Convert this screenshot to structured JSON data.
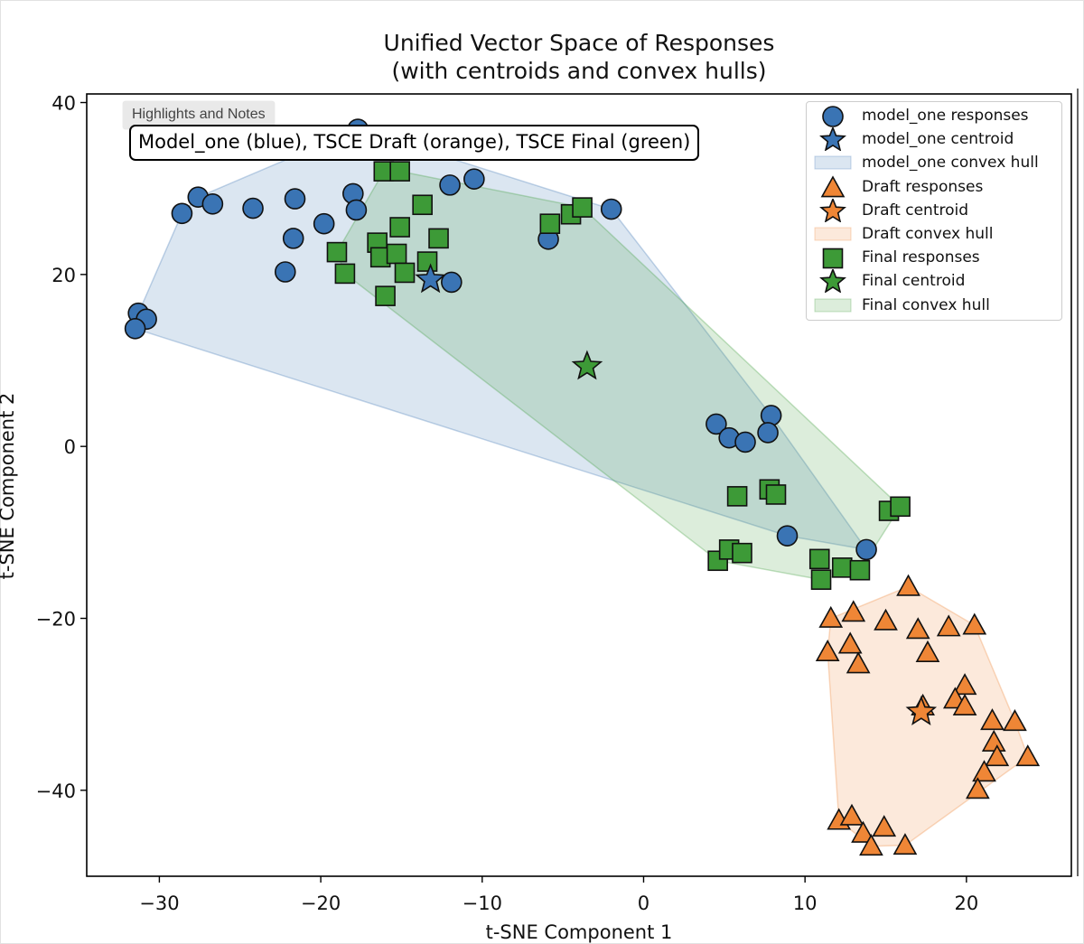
{
  "chart_data": {
    "type": "scatter",
    "title": "Unified Vector Space of Responses\n(with centroids and convex hulls)",
    "xlabel": "t-SNE Component 1",
    "ylabel": "t-SNE Component 2",
    "xlim": [
      -34.5,
      26.5
    ],
    "ylim": [
      -50,
      41
    ],
    "xticks": [
      -30,
      -20,
      -10,
      0,
      10,
      20
    ],
    "yticks": [
      -40,
      -20,
      0,
      20,
      40
    ],
    "annotation": "Model_one (blue), TSCE Draft (orange), TSCE Final (green)",
    "chip_label": "Highlights and Notes",
    "series": [
      {
        "name": "model_one responses",
        "marker": "circle",
        "color": "#3a74b4",
        "centroid": {
          "name": "model_one centroid",
          "x": -13.2,
          "y": 19.4
        },
        "hull_name": "model_one convex hull",
        "points": [
          [
            -17.7,
            36.9
          ],
          [
            -27.6,
            29
          ],
          [
            -28.6,
            27.1
          ],
          [
            -26.7,
            28.2
          ],
          [
            -24.2,
            27.7
          ],
          [
            -21.6,
            28.8
          ],
          [
            -21.7,
            24.2
          ],
          [
            -19.8,
            25.9
          ],
          [
            -22.2,
            20.3
          ],
          [
            -18,
            29.4
          ],
          [
            -17.8,
            27.5
          ],
          [
            -12.0,
            30.4
          ],
          [
            -10.5,
            31.1
          ],
          [
            -11.9,
            19.1
          ],
          [
            -2.0,
            27.6
          ],
          [
            -5.9,
            24.1
          ],
          [
            -31.3,
            15.5
          ],
          [
            -30.8,
            14.8
          ],
          [
            -31.5,
            13.7
          ],
          [
            4.5,
            2.6
          ],
          [
            5.3,
            1.0
          ],
          [
            6.3,
            0.5
          ],
          [
            7.9,
            3.6
          ],
          [
            7.7,
            1.6
          ],
          [
            8.9,
            -10.4
          ],
          [
            13.8,
            -12
          ]
        ]
      },
      {
        "name": "Draft responses",
        "marker": "triangle",
        "color": "#ef8636",
        "centroid": {
          "name": "Draft centroid",
          "x": 17.2,
          "y": -30.9
        },
        "hull_name": "Draft convex hull",
        "points": [
          [
            16.4,
            -16.3
          ],
          [
            11.6,
            -20
          ],
          [
            13,
            -19.3
          ],
          [
            15,
            -20.3
          ],
          [
            17,
            -21.3
          ],
          [
            18.9,
            -21
          ],
          [
            20.5,
            -20.8
          ],
          [
            11.4,
            -23.9
          ],
          [
            12.8,
            -23
          ],
          [
            17.6,
            -24
          ],
          [
            13.3,
            -25.3
          ],
          [
            19.9,
            -27.8
          ],
          [
            19.3,
            -29.4
          ],
          [
            17.3,
            -30.2
          ],
          [
            19.9,
            -30.2
          ],
          [
            21.6,
            -31.9
          ],
          [
            23,
            -32
          ],
          [
            21.7,
            -34.4
          ],
          [
            21.9,
            -36.1
          ],
          [
            23.8,
            -36.1
          ],
          [
            21.1,
            -37.9
          ],
          [
            20.7,
            -39.9
          ],
          [
            12.1,
            -43.5
          ],
          [
            12.9,
            -43
          ],
          [
            13.6,
            -45
          ],
          [
            14.9,
            -44.3
          ],
          [
            14.1,
            -46.5
          ],
          [
            16.2,
            -46.4
          ]
        ]
      },
      {
        "name": "Final responses",
        "marker": "square",
        "color": "#3d9a37",
        "centroid": {
          "name": "Final centroid",
          "x": -3.5,
          "y": 9.3
        },
        "hull_name": "Final convex hull",
        "points": [
          [
            -16.1,
            32
          ],
          [
            -15.1,
            32
          ],
          [
            -19.0,
            22.6
          ],
          [
            -18.5,
            20.1
          ],
          [
            -16.5,
            23.7
          ],
          [
            -16.3,
            22
          ],
          [
            -15.1,
            25.5
          ],
          [
            -15.3,
            22.4
          ],
          [
            -14.8,
            20.2
          ],
          [
            -13.7,
            28.1
          ],
          [
            -12.7,
            24.2
          ],
          [
            -13.4,
            21.5
          ],
          [
            -16,
            17.5
          ],
          [
            -5.8,
            25.9
          ],
          [
            -4.5,
            27.0
          ],
          [
            -3.8,
            27.8
          ],
          [
            5.8,
            -5.8
          ],
          [
            7.8,
            -5.0
          ],
          [
            8.2,
            -5.6
          ],
          [
            4.6,
            -13.3
          ],
          [
            5.3,
            -12
          ],
          [
            6.1,
            -12.4
          ],
          [
            10.9,
            -13.1
          ],
          [
            12.3,
            -14.1
          ],
          [
            11.0,
            -15.5
          ],
          [
            13.4,
            -14.4
          ],
          [
            15.2,
            -7.5
          ],
          [
            15.9,
            -7.0
          ]
        ]
      }
    ]
  }
}
